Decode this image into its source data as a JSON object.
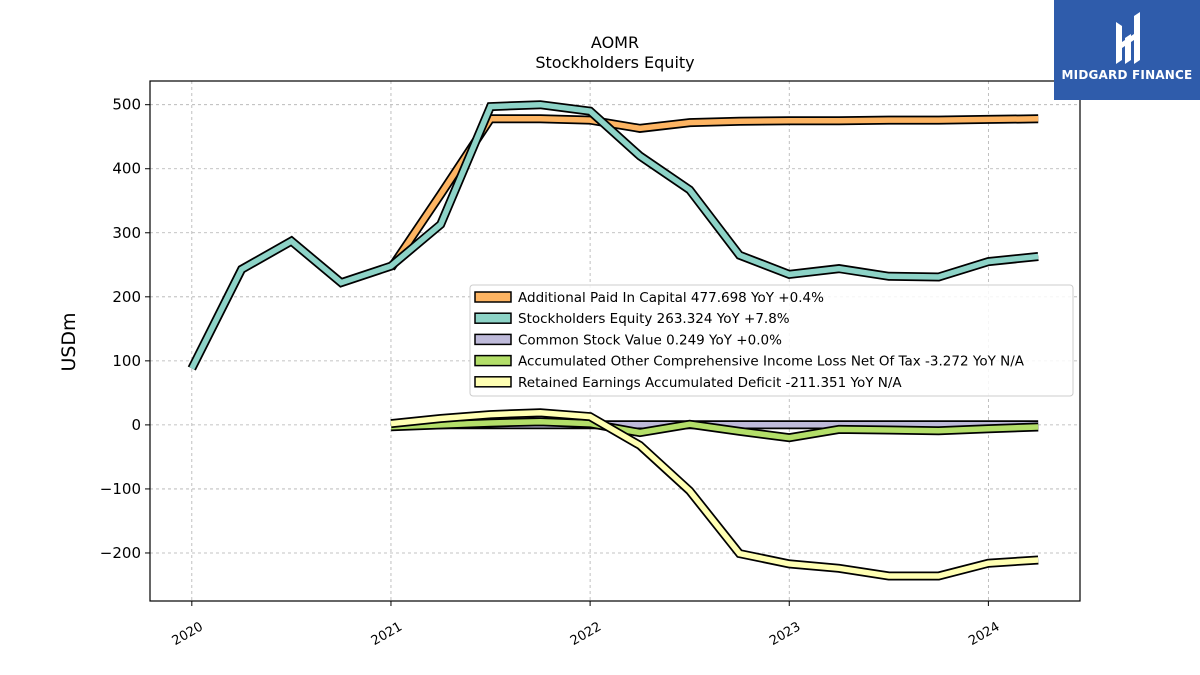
{
  "brand": {
    "name": "MIDGARD FINANCE",
    "logo_icon": "midgard-logo-icon",
    "background": "#2f5cab"
  },
  "chart_data": {
    "type": "line",
    "title": "AOMR",
    "subtitle": "Stockholders  Equity",
    "ylabel": "USDm",
    "xlabel": "",
    "ylim": [
      -275,
      537
    ],
    "xlim": [
      2019.79,
      2024.46
    ],
    "yticks": [
      500,
      400,
      300,
      200,
      100,
      0,
      -100,
      -200
    ],
    "ytick_labels": [
      "500",
      "400",
      "300",
      "200",
      "100",
      "0",
      "−100",
      "−200"
    ],
    "xticks": [
      2020,
      2021,
      2022,
      2023,
      2024
    ],
    "xtick_labels": [
      "2020",
      "2021",
      "2022",
      "2023",
      "2024"
    ],
    "grid": true,
    "legend_position": "center-right",
    "series": [
      {
        "name": "Additional Paid In Capital",
        "legend_label": "Additional Paid In Capital  477.698 YoY +0.4%",
        "color": "#fdb462",
        "x": [
          2021.0,
          2021.25,
          2021.5,
          2021.75,
          2022.0,
          2022.25,
          2022.5,
          2022.75,
          2023.0,
          2023.25,
          2023.5,
          2023.75,
          2024.0,
          2024.25
        ],
        "y": [
          245,
          360,
          478,
          478,
          476,
          463,
          472,
          474,
          475,
          475,
          476,
          476,
          477,
          478
        ]
      },
      {
        "name": "Stockholders Equity",
        "legend_label": "Stockholders Equity  263.324 YoY +7.8%",
        "color": "#8dd3c7",
        "x": [
          2020.0,
          2020.25,
          2020.5,
          2020.75,
          2021.0,
          2021.25,
          2021.5,
          2021.75,
          2022.0,
          2022.25,
          2022.5,
          2022.75,
          2023.0,
          2023.25,
          2023.5,
          2023.75,
          2024.0,
          2024.25
        ],
        "y": [
          88,
          243,
          287,
          222,
          248,
          313,
          497,
          500,
          490,
          420,
          367,
          265,
          235,
          244,
          232,
          231,
          255,
          263
        ]
      },
      {
        "name": "Common Stock Value",
        "legend_label": "Common Stock Value  0.249 YoY +0.0%",
        "color": "#bebada",
        "x": [
          2021.0,
          2021.25,
          2021.5,
          2021.75,
          2022.0,
          2022.25,
          2022.5,
          2022.75,
          2023.0,
          2023.25,
          2023.5,
          2023.75,
          2024.0,
          2024.25
        ],
        "y": [
          0.2,
          0.2,
          0.2,
          0.2,
          0.2,
          0.2,
          0.2,
          0.2,
          0.2,
          0.2,
          0.2,
          0.2,
          0.2,
          0.249
        ]
      },
      {
        "name": "Accumulated Other Comprehensive Income Loss Net Of Tax",
        "legend_label": "Accumulated Other Comprehensive Income Loss Net Of Tax  -3.272 YoY N/A",
        "color": "#b3de69",
        "x": [
          2021.0,
          2021.25,
          2021.5,
          2021.75,
          2022.0,
          2022.25,
          2022.5,
          2022.75,
          2023.0,
          2023.25,
          2023.5,
          2023.75,
          2024.0,
          2024.25
        ],
        "y": [
          -3,
          0,
          3,
          5,
          2,
          -12,
          1,
          -10,
          -20,
          -7,
          -8,
          -9,
          -6,
          -3.272
        ]
      },
      {
        "name": "Retained Earnings Accumulated Deficit",
        "legend_label": "Retained Earnings Accumulated Deficit  -211.351 YoY N/A",
        "color": "#ffffb3",
        "x": [
          2021.0,
          2021.25,
          2021.5,
          2021.75,
          2022.0,
          2022.25,
          2022.5,
          2022.75,
          2023.0,
          2023.25,
          2023.5,
          2023.75,
          2024.0,
          2024.25
        ],
        "y": [
          2,
          10,
          16,
          19,
          13,
          -32,
          -103,
          -201,
          -217,
          -224,
          -236,
          -236,
          -216,
          -211
        ]
      }
    ]
  }
}
